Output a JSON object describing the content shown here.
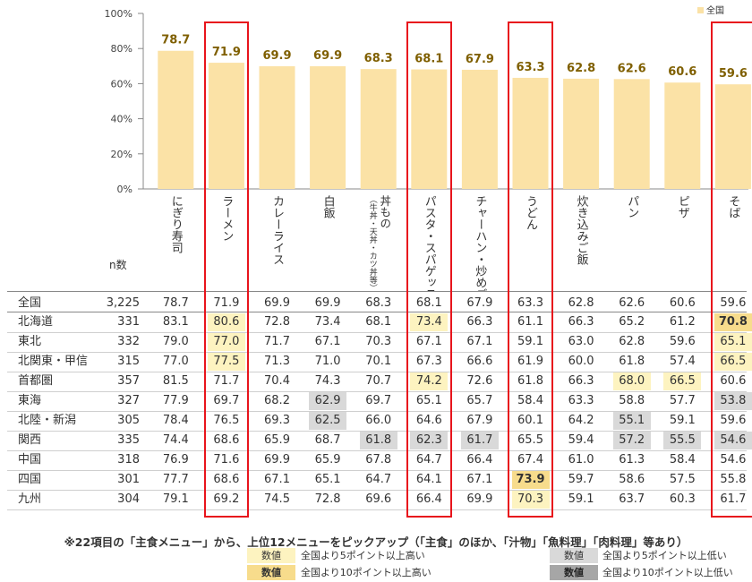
{
  "chart_data": {
    "type": "bar",
    "categories": [
      "にぎり寿司",
      "ラーメン",
      "カレーライス",
      "白飯",
      "丼もの（牛丼・天丼・カツ丼等）",
      "パスタ・スパゲッティ",
      "チャーハン・炒めご飯",
      "うどん",
      "炊き込みご飯",
      "パン",
      "ピザ",
      "そば"
    ],
    "series": [
      {
        "name": "全国",
        "values": [
          78.7,
          71.9,
          69.9,
          69.9,
          68.3,
          68.1,
          67.9,
          63.3,
          62.8,
          62.6,
          60.6,
          59.6
        ]
      }
    ],
    "value_labels": [
      "78.7",
      "71.9",
      "69.9",
      "69.9",
      "68.3",
      "68.1",
      "67.9",
      "63.3",
      "62.8",
      "62.6",
      "60.6",
      "59.6"
    ],
    "ylim": [
      0,
      100
    ],
    "yticks": [
      "0%",
      "20%",
      "40%",
      "60%",
      "80%",
      "100%"
    ],
    "legend": "top-right",
    "bar_color": "#fbe2a6",
    "label_color": "#7f5f00",
    "highlighted_categories": [
      1,
      5,
      7,
      11
    ],
    "highlight_color": "#e8141c"
  },
  "category_labels": [
    {
      "main": "にぎり寿司"
    },
    {
      "main": "ラーメン"
    },
    {
      "main": "カレーライス"
    },
    {
      "main": "白飯"
    },
    {
      "main": "丼もの",
      "sub": "（牛丼・天丼・カツ丼等）"
    },
    {
      "main": "パスタ・スパゲッティ"
    },
    {
      "main": "チャーハン・炒めご飯"
    },
    {
      "main": "うどん"
    },
    {
      "main": "炊き込みご飯"
    },
    {
      "main": "パン"
    },
    {
      "main": "ピザ"
    },
    {
      "main": "そば"
    }
  ],
  "table": {
    "n_header": "n数",
    "rows": [
      {
        "region": "全国",
        "n": "3,225",
        "values": [
          "78.7",
          "71.9",
          "69.9",
          "69.9",
          "68.3",
          "68.1",
          "67.9",
          "63.3",
          "62.8",
          "62.6",
          "60.6",
          "59.6"
        ],
        "marks": [
          "",
          "",
          "",
          "",
          "",
          "",
          "",
          "",
          "",
          "",
          "",
          ""
        ]
      },
      {
        "region": "北海道",
        "n": "331",
        "values": [
          "83.1",
          "80.6",
          "72.8",
          "73.4",
          "68.1",
          "73.4",
          "66.3",
          "61.1",
          "66.3",
          "65.2",
          "61.2",
          "70.8"
        ],
        "marks": [
          "",
          "hi5",
          "",
          "",
          "",
          "hi5",
          "",
          "",
          "",
          "",
          "",
          "hi10"
        ]
      },
      {
        "region": "東北",
        "n": "332",
        "values": [
          "79.0",
          "77.0",
          "71.7",
          "67.1",
          "70.3",
          "67.1",
          "67.1",
          "59.1",
          "63.0",
          "62.8",
          "59.6",
          "65.1"
        ],
        "marks": [
          "",
          "hi5",
          "",
          "",
          "",
          "",
          "",
          "",
          "",
          "",
          "",
          "hi5"
        ]
      },
      {
        "region": "北関東・甲信",
        "n": "315",
        "values": [
          "77.0",
          "77.5",
          "71.3",
          "71.0",
          "70.1",
          "67.3",
          "66.6",
          "61.9",
          "60.0",
          "61.8",
          "57.4",
          "66.5"
        ],
        "marks": [
          "",
          "hi5",
          "",
          "",
          "",
          "",
          "",
          "",
          "",
          "",
          "",
          "hi5"
        ]
      },
      {
        "region": "首都圏",
        "n": "357",
        "values": [
          "81.5",
          "71.7",
          "70.4",
          "74.3",
          "70.7",
          "74.2",
          "72.6",
          "61.8",
          "66.3",
          "68.0",
          "66.5",
          "60.6"
        ],
        "marks": [
          "",
          "",
          "",
          "",
          "",
          "hi5",
          "",
          "",
          "",
          "hi5",
          "hi5",
          ""
        ]
      },
      {
        "region": "東海",
        "n": "327",
        "values": [
          "77.9",
          "69.7",
          "68.2",
          "62.9",
          "69.7",
          "65.1",
          "65.7",
          "58.4",
          "63.3",
          "58.8",
          "57.7",
          "53.8"
        ],
        "marks": [
          "",
          "",
          "",
          "lo5",
          "",
          "",
          "",
          "",
          "",
          "",
          "",
          "lo5"
        ]
      },
      {
        "region": "北陸・新潟",
        "n": "305",
        "values": [
          "78.4",
          "76.5",
          "69.3",
          "62.5",
          "66.0",
          "64.6",
          "67.9",
          "60.1",
          "64.2",
          "55.1",
          "59.1",
          "59.6"
        ],
        "marks": [
          "",
          "",
          "",
          "lo5",
          "",
          "",
          "",
          "",
          "",
          "lo5",
          "",
          ""
        ]
      },
      {
        "region": "関西",
        "n": "335",
        "values": [
          "74.4",
          "68.6",
          "65.9",
          "68.7",
          "61.8",
          "62.3",
          "61.7",
          "65.5",
          "59.4",
          "57.2",
          "55.5",
          "54.6"
        ],
        "marks": [
          "",
          "",
          "",
          "",
          "lo5",
          "lo5",
          "lo5",
          "",
          "",
          "lo5",
          "lo5",
          "lo5"
        ]
      },
      {
        "region": "中国",
        "n": "318",
        "values": [
          "76.9",
          "71.6",
          "69.9",
          "65.9",
          "67.8",
          "64.7",
          "66.4",
          "67.4",
          "61.0",
          "61.3",
          "58.4",
          "54.6"
        ],
        "marks": [
          "",
          "",
          "",
          "",
          "",
          "",
          "",
          "",
          "",
          "",
          "",
          ""
        ]
      },
      {
        "region": "四国",
        "n": "301",
        "values": [
          "77.7",
          "68.6",
          "67.1",
          "65.1",
          "64.7",
          "64.1",
          "67.1",
          "73.9",
          "59.7",
          "58.6",
          "57.5",
          "55.8"
        ],
        "marks": [
          "",
          "",
          "",
          "",
          "",
          "",
          "",
          "hi10",
          "",
          "",
          "",
          ""
        ]
      },
      {
        "region": "九州",
        "n": "304",
        "values": [
          "79.1",
          "69.2",
          "74.5",
          "72.8",
          "69.6",
          "66.4",
          "69.9",
          "70.3",
          "59.1",
          "63.7",
          "60.3",
          "61.7"
        ],
        "marks": [
          "",
          "",
          "",
          "",
          "",
          "",
          "",
          "hi5",
          "",
          "",
          "",
          ""
        ]
      }
    ]
  },
  "note": "※22項目の「主食メニュー」から、上位12メニューをピックアップ（「主食」のほか、「汁物」「魚料理」「肉料理」等あり）",
  "legend_items": {
    "swatch_text": "数値",
    "hi5": "全国より5ポイント以上高い",
    "hi10": "全国より10ポイント以上高い",
    "lo5": "全国より5ポイント以上低い",
    "lo10": "全国より10ポイント以上低い"
  }
}
